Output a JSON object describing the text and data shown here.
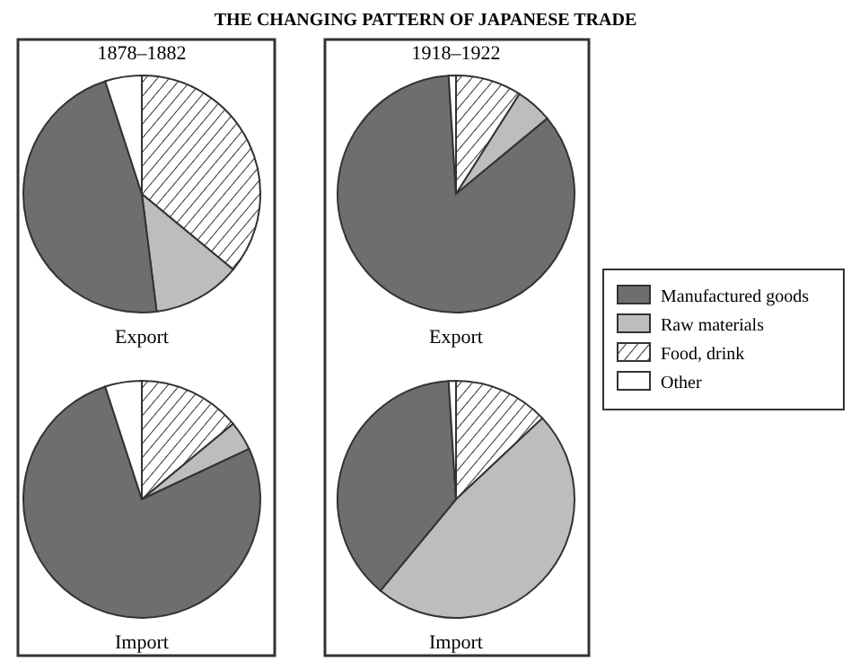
{
  "chart_data": [
    {
      "type": "pie",
      "subtitle": "1878–1882",
      "xlabel": "Export",
      "categories": [
        null,
        null,
        null,
        null
      ],
      "values": [
        36,
        12,
        47,
        5
      ],
      "colors": [
        "#333333",
        "#bdbdbd",
        "#6e6e6e",
        "#ffffff"
      ]
    },
    {
      "type": "pie",
      "title": "THE CHANGING PATTERN OF JAPANESE TRADE",
      "subtitle": "1918–1922",
      "xlabel": "Export",
      "categories": [
        "Food, drink",
        "Raw materials",
        "Manufactured goods",
        "Other"
      ],
      "values": [
        9,
        5,
        85,
        1
      ],
      "colors": [
        "#333333",
        "#bdbdbd",
        "#6e6e6e",
        "#ffffff"
      ],
      "legend": "right"
    },
    {
      "type": "pie",
      "xlabel": "Import",
      "categories": [
        null,
        null,
        null,
        null
      ],
      "values": [
        14,
        4,
        77,
        5
      ],
      "colors": [
        "#333333",
        "#bdbdbd",
        "#6e6e6e",
        "#ffffff"
      ]
    },
    {
      "type": "pie",
      "xlabel": "Import",
      "categories": [
        null,
        null,
        null,
        null
      ],
      "values": [
        13,
        48,
        38,
        1
      ],
      "colors": [
        "#333333",
        "#bdbdbd",
        "#6e6e6e",
        "#ffffff"
      ]
    }
  ]
}
